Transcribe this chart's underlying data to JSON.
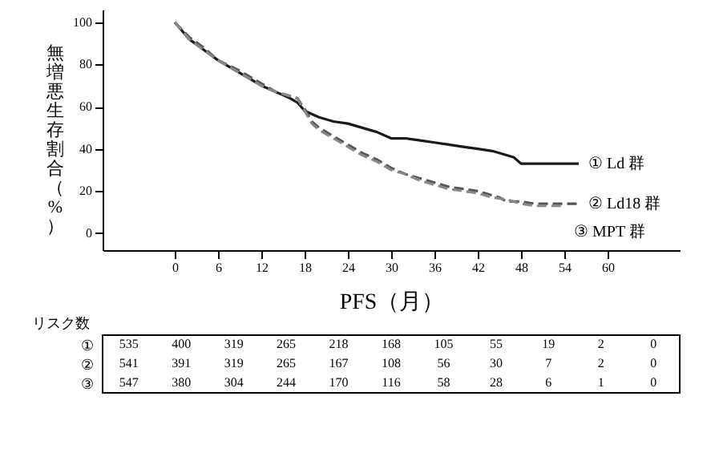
{
  "chart_data": {
    "type": "line",
    "xlabel": "PFS（月）",
    "ylabel": "無増悪生存割合（%）",
    "xlim": [
      -10,
      70
    ],
    "ylim": [
      -8,
      106
    ],
    "xticks": [
      0,
      6,
      12,
      18,
      24,
      30,
      36,
      42,
      48,
      54,
      60
    ],
    "yticks": [
      0,
      20,
      40,
      60,
      80,
      100
    ],
    "grid": false,
    "marker": "none",
    "series": [
      {
        "name": "① Ld 群",
        "color": "#1a1a1a",
        "line_style": "solid",
        "x": [
          0,
          2,
          4,
          6,
          9,
          12,
          14,
          16,
          17,
          18,
          20,
          22,
          24,
          26,
          28,
          30,
          32,
          34,
          36,
          38,
          40,
          42,
          44,
          46,
          47,
          48,
          50,
          52,
          54,
          56
        ],
        "values": [
          100,
          92,
          87,
          82,
          76,
          70,
          67,
          64,
          62,
          58,
          55,
          53,
          52,
          50,
          48,
          45,
          45,
          44,
          43,
          42,
          41,
          40,
          39,
          37,
          36,
          33,
          33,
          33,
          33,
          33
        ]
      },
      {
        "name": "② Ld18 群",
        "color": "#555555",
        "line_style": "dashed",
        "x": [
          0,
          2,
          4,
          6,
          9,
          12,
          14,
          16,
          17,
          18,
          19,
          20,
          22,
          24,
          26,
          28,
          30,
          32,
          34,
          36,
          38,
          40,
          42,
          44,
          45,
          46,
          48,
          50,
          52,
          54,
          56
        ],
        "values": [
          100,
          93,
          88,
          82,
          77,
          71,
          67,
          65,
          64,
          59,
          53,
          50,
          46,
          42,
          38,
          35,
          31,
          28,
          26,
          24,
          22,
          21,
          20,
          18,
          17,
          15,
          15,
          14,
          14,
          14,
          14
        ]
      },
      {
        "name": "③ MPT 群",
        "color": "#888888",
        "line_style": "dashed",
        "x": [
          0,
          2,
          4,
          6,
          9,
          12,
          14,
          16,
          17,
          18,
          19,
          20,
          22,
          24,
          26,
          28,
          30,
          32,
          34,
          36,
          38,
          40,
          42,
          44,
          46,
          48,
          50,
          52,
          54
        ],
        "values": [
          100,
          92,
          87,
          82,
          76,
          70,
          67,
          65,
          64,
          58,
          52,
          49,
          45,
          41,
          37,
          34,
          30,
          28,
          25,
          23,
          21,
          20,
          19,
          17,
          16,
          14,
          13,
          13,
          13
        ]
      }
    ],
    "annotations": [
      "リスク数",
      "①",
      "535",
      "400",
      "319",
      "265",
      "218",
      "168",
      "105",
      "55",
      "19",
      "2",
      "0",
      "②",
      "541",
      "391",
      "319",
      "265",
      "167",
      "108",
      "56",
      "30",
      "7",
      "2",
      "0",
      "③",
      "547",
      "380",
      "304",
      "244",
      "170",
      "116",
      "58",
      "28",
      "6",
      "1",
      "0"
    ]
  }
}
